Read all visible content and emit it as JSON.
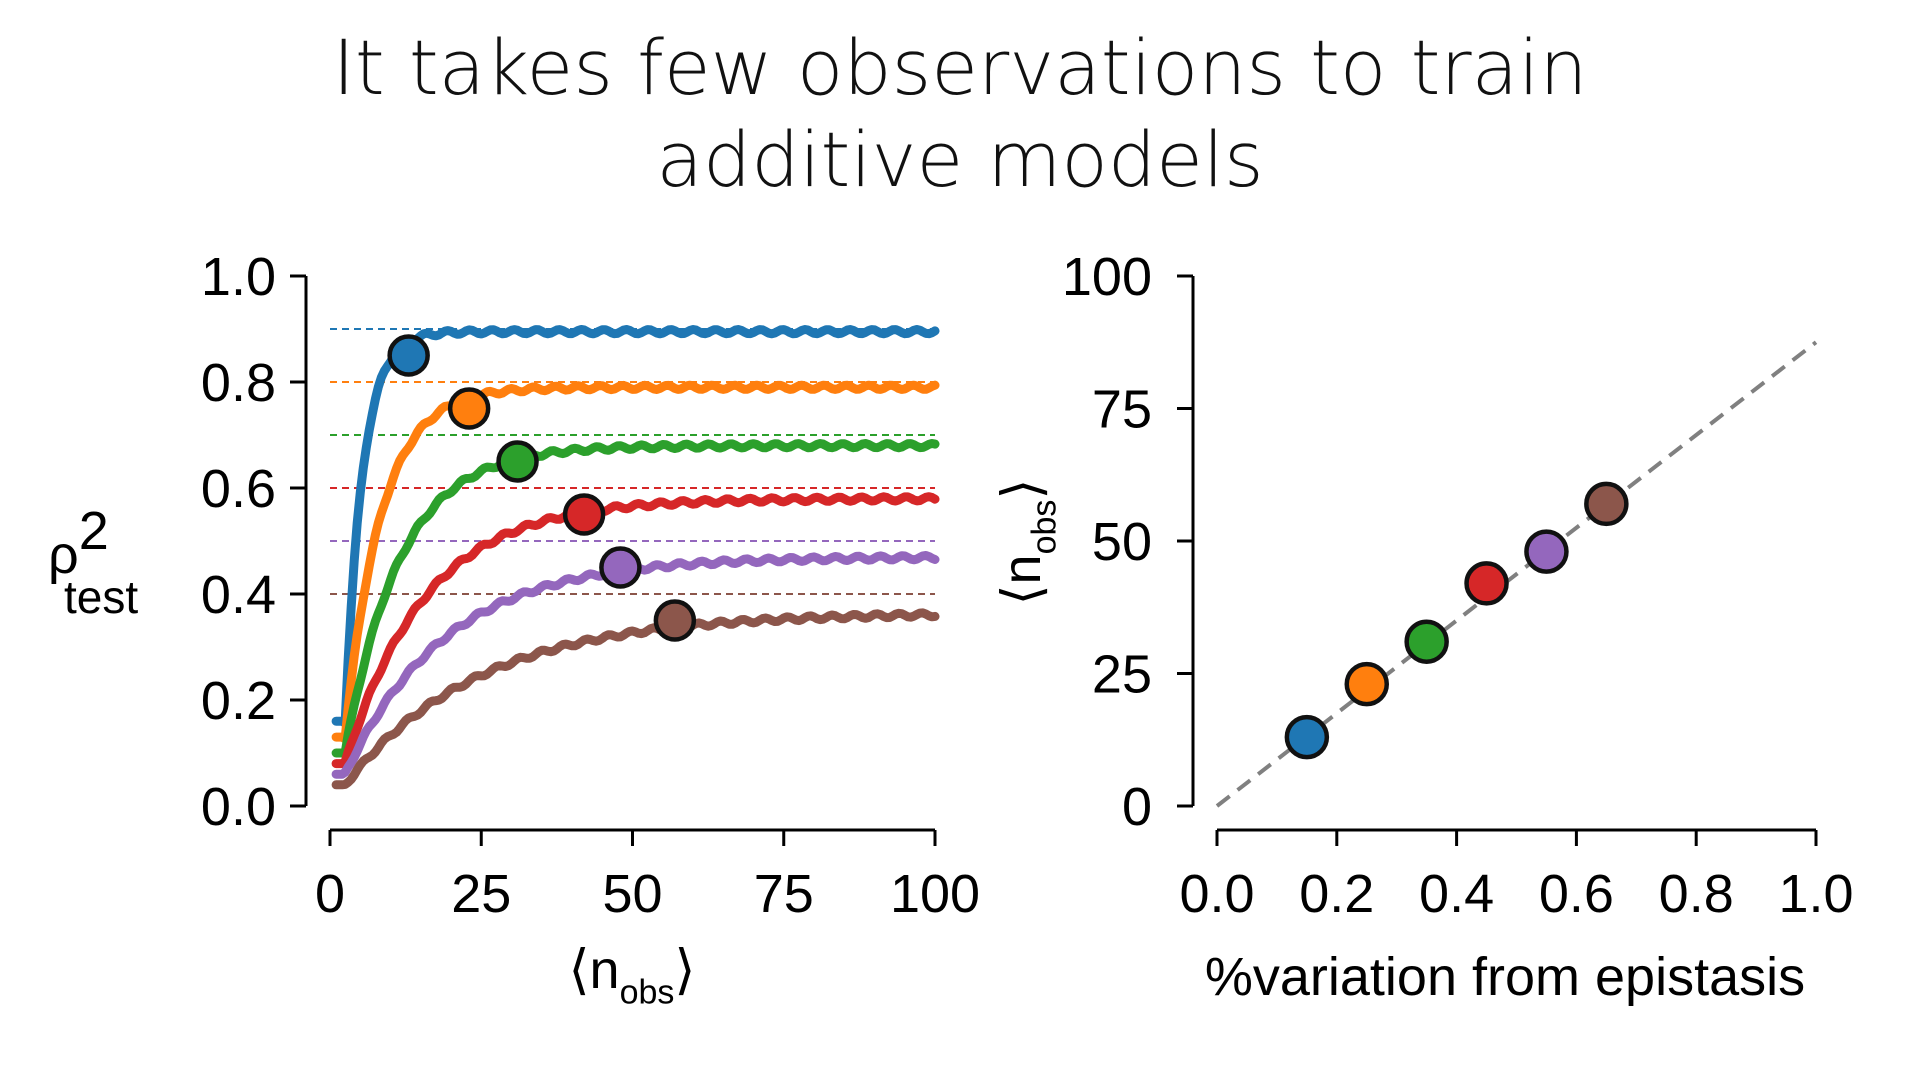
{
  "title_lines": [
    "It takes few observations to train",
    "additive models"
  ],
  "colors": {
    "blue": "#1f77b4",
    "orange": "#ff7f0e",
    "green": "#2ca02c",
    "red": "#d62728",
    "purple": "#9467bd",
    "brown": "#8c564b",
    "reference_line": "#808080",
    "axis": "#000000"
  },
  "chart_data": [
    {
      "type": "line",
      "xlabel": "⟨n_obs⟩",
      "ylabel": "ρ²_test",
      "xlim": [
        0,
        100
      ],
      "ylim": [
        0,
        1.0
      ],
      "xticks": [
        "0",
        "25",
        "50",
        "75",
        "100"
      ],
      "yticks": [
        "0.0",
        "0.2",
        "0.4",
        "0.6",
        "0.8",
        "1.0"
      ],
      "grid": false,
      "legend": "none",
      "series": [
        {
          "color": "blue",
          "asymptote": 0.9,
          "final": 0.895,
          "start": 0.16,
          "rate": 0.35,
          "dashed_level": 0.9,
          "marker": {
            "x": 13,
            "y": 0.85
          }
        },
        {
          "color": "orange",
          "asymptote": 0.8,
          "final": 0.79,
          "start": 0.13,
          "rate": 0.17,
          "dashed_level": 0.8,
          "marker": {
            "x": 23,
            "y": 0.75
          }
        },
        {
          "color": "green",
          "asymptote": 0.7,
          "final": 0.68,
          "start": 0.1,
          "rate": 0.11,
          "dashed_level": 0.7,
          "marker": {
            "x": 31,
            "y": 0.65
          }
        },
        {
          "color": "red",
          "asymptote": 0.6,
          "final": 0.58,
          "start": 0.08,
          "rate": 0.075,
          "dashed_level": 0.6,
          "marker": {
            "x": 42,
            "y": 0.55
          }
        },
        {
          "color": "purple",
          "asymptote": 0.5,
          "final": 0.47,
          "start": 0.06,
          "rate": 0.06,
          "dashed_level": 0.5,
          "marker": {
            "x": 48,
            "y": 0.45
          }
        },
        {
          "color": "brown",
          "asymptote": 0.4,
          "final": 0.365,
          "start": 0.04,
          "rate": 0.045,
          "dashed_level": 0.4,
          "marker": {
            "x": 57,
            "y": 0.35
          }
        }
      ]
    },
    {
      "type": "scatter",
      "xlabel": "%variation from epistasis",
      "ylabel": "⟨n_obs⟩",
      "xlim": [
        0,
        1.0
      ],
      "ylim": [
        0,
        100
      ],
      "xticks": [
        "0.0",
        "0.2",
        "0.4",
        "0.6",
        "0.8",
        "1.0"
      ],
      "yticks": [
        "0",
        "25",
        "50",
        "75",
        "100"
      ],
      "grid": false,
      "legend": "none",
      "reference_line": {
        "style": "dashed",
        "from": [
          0,
          0
        ],
        "to": [
          1.0,
          87.5
        ]
      },
      "points": [
        {
          "x": 0.15,
          "y": 13,
          "color": "blue"
        },
        {
          "x": 0.25,
          "y": 23,
          "color": "orange"
        },
        {
          "x": 0.35,
          "y": 31,
          "color": "green"
        },
        {
          "x": 0.45,
          "y": 42,
          "color": "red"
        },
        {
          "x": 0.55,
          "y": 48,
          "color": "purple"
        },
        {
          "x": 0.65,
          "y": 57,
          "color": "brown"
        }
      ]
    }
  ]
}
